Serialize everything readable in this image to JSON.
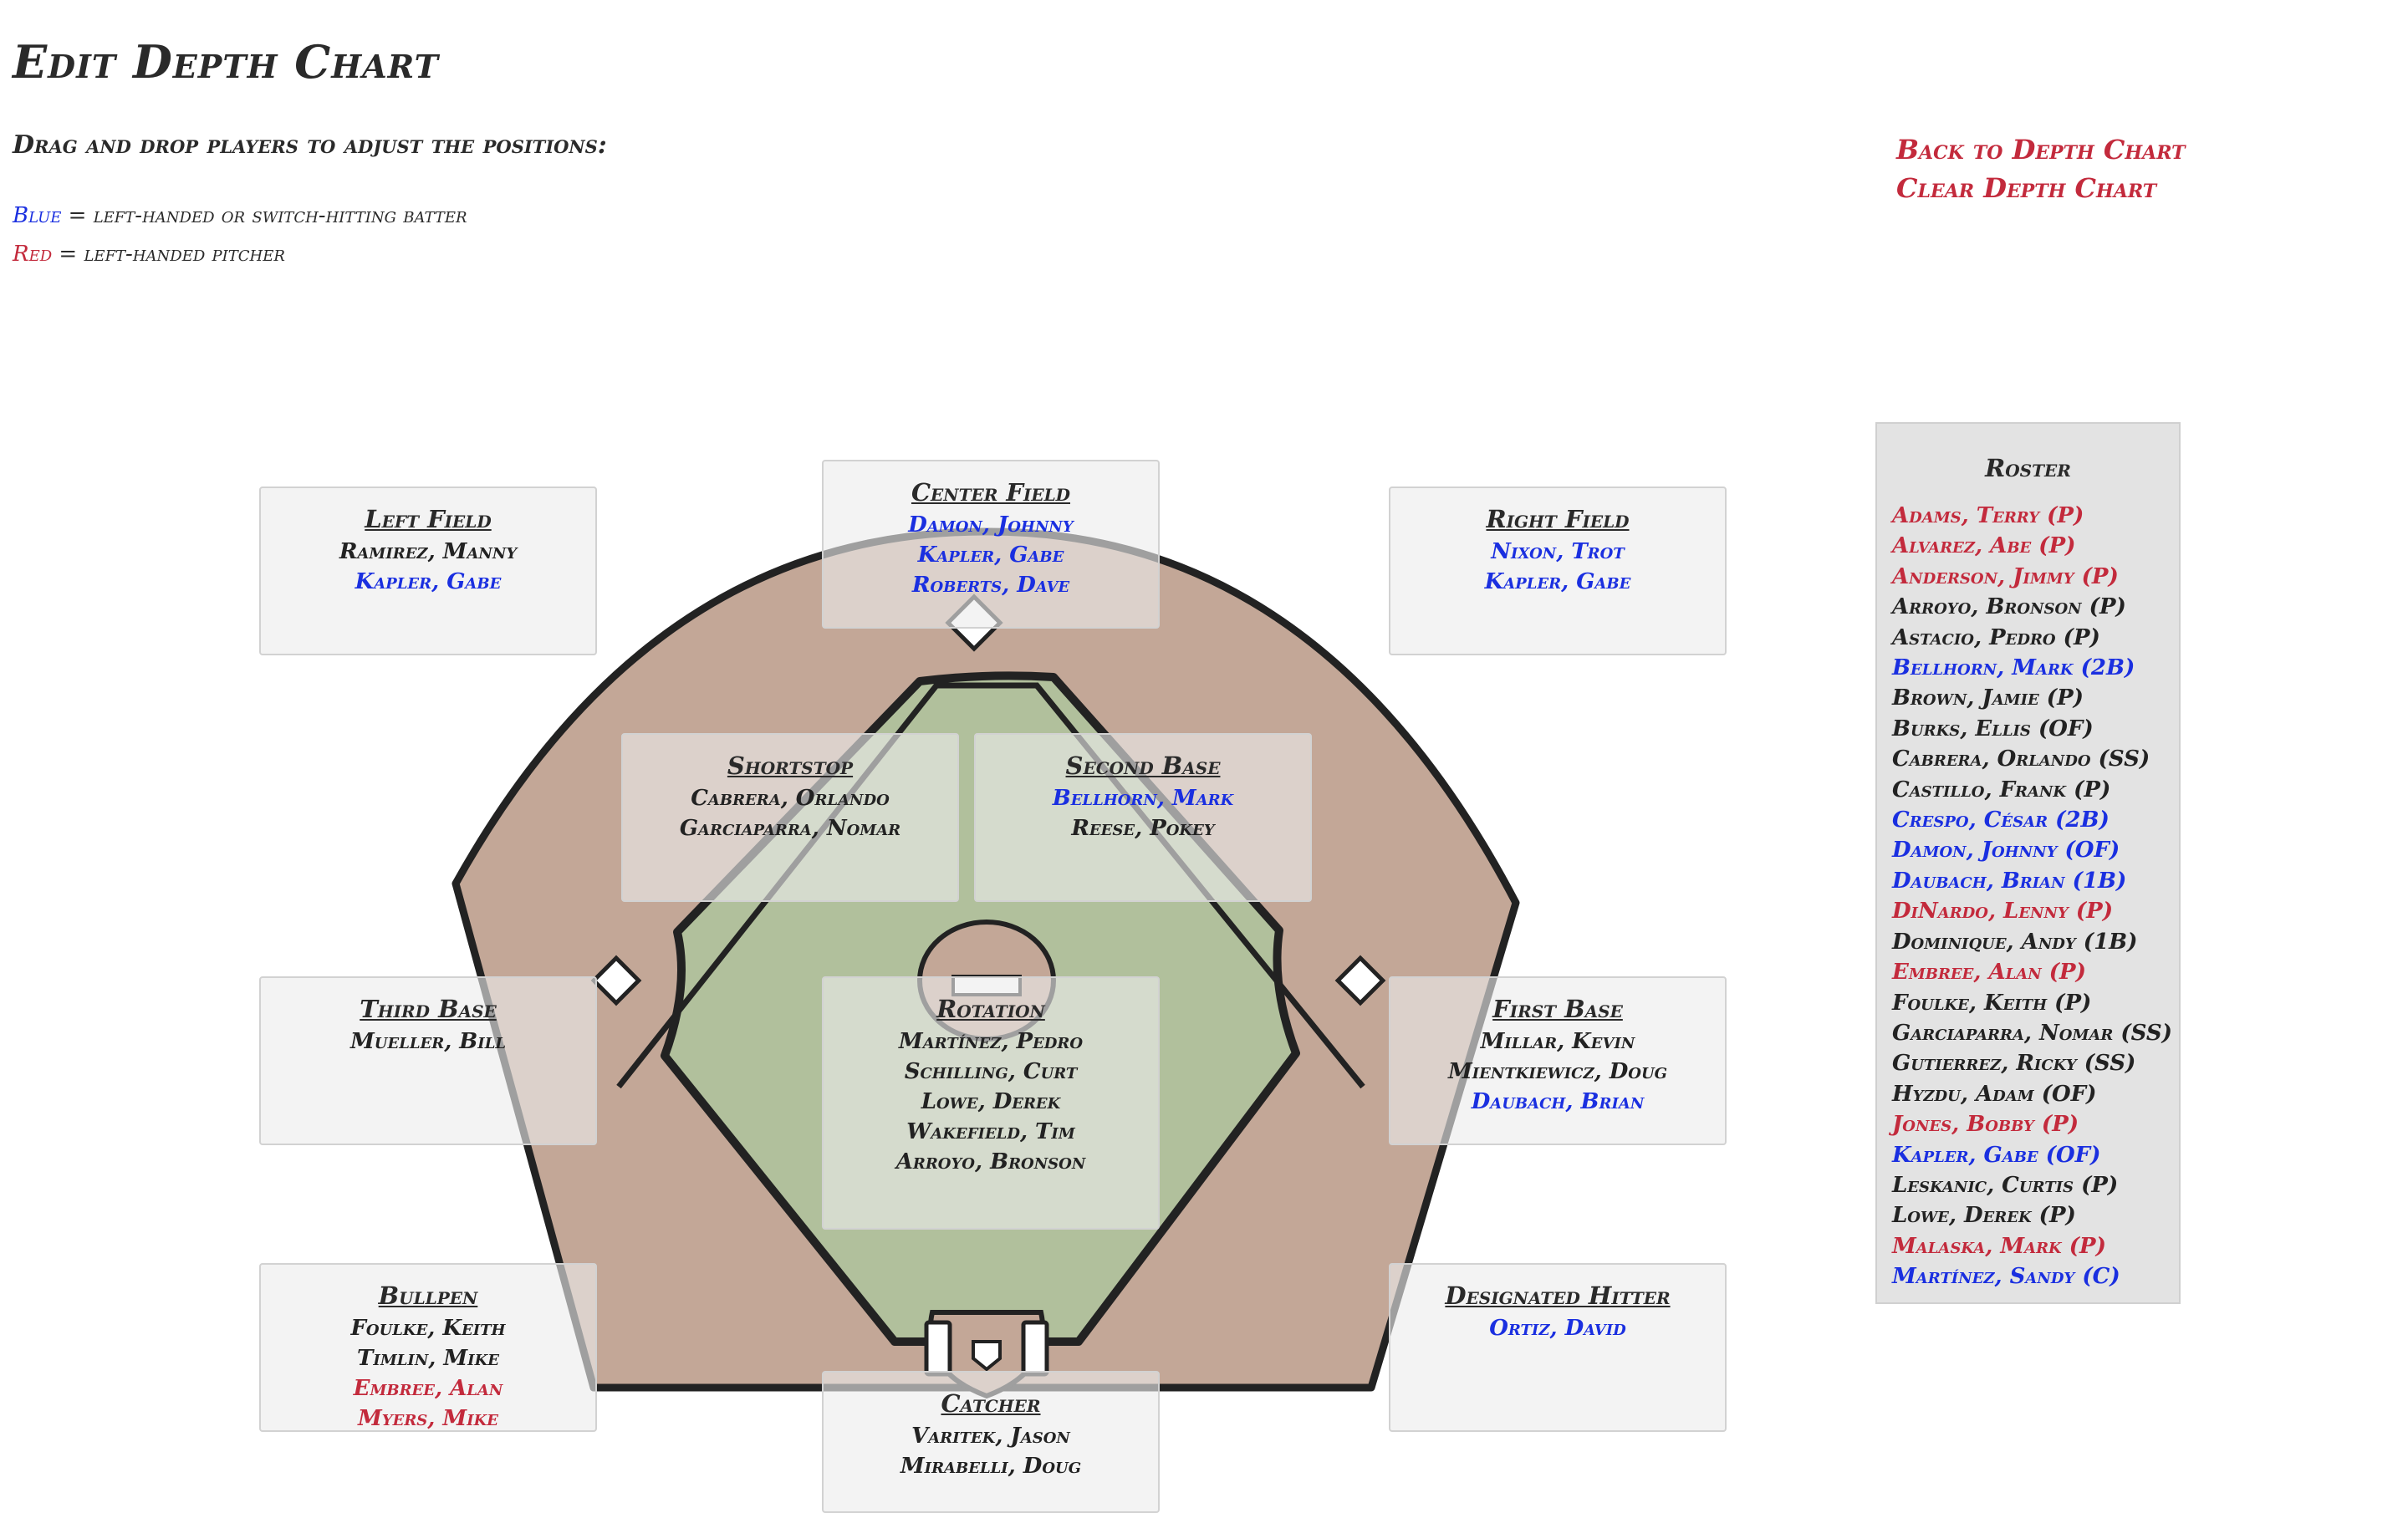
{
  "header": {
    "title": "Edit Depth Chart",
    "instructions": "Drag and drop players to adjust the positions:",
    "legend_blue_word": "Blue",
    "legend_blue_text": " = left-handed or switch-hitting batter",
    "legend_red_word": "Red",
    "legend_red_text": " = left-handed pitcher"
  },
  "links": {
    "back": "Back to Depth Chart",
    "clear": "Clear Depth Chart"
  },
  "colors": {
    "blue": "#1a2fe0",
    "red": "#c32a3c",
    "infield": "#b1c09c",
    "dirt": "#c3a797"
  },
  "positions": [
    {
      "id": "left-field",
      "title": "Left Field",
      "players": [
        {
          "name": "Ramirez, Manny",
          "color": "default"
        },
        {
          "name": "Kapler, Gabe",
          "color": "blue"
        }
      ]
    },
    {
      "id": "center-field",
      "title": "Center Field",
      "players": [
        {
          "name": "Damon, Johnny",
          "color": "blue"
        },
        {
          "name": "Kapler, Gabe",
          "color": "blue"
        },
        {
          "name": "Roberts, Dave",
          "color": "blue"
        }
      ]
    },
    {
      "id": "right-field",
      "title": "Right Field",
      "players": [
        {
          "name": "Nixon, Trot",
          "color": "blue"
        },
        {
          "name": "Kapler, Gabe",
          "color": "blue"
        }
      ]
    },
    {
      "id": "shortstop",
      "title": "Shortstop",
      "players": [
        {
          "name": "Cabrera, Orlando",
          "color": "default"
        },
        {
          "name": "Garciaparra, Nomar",
          "color": "default"
        }
      ]
    },
    {
      "id": "second-base",
      "title": "Second Base",
      "players": [
        {
          "name": "Bellhorn, Mark",
          "color": "blue"
        },
        {
          "name": "Reese, Pokey",
          "color": "default"
        }
      ]
    },
    {
      "id": "third-base",
      "title": "Third Base",
      "players": [
        {
          "name": "Mueller, Bill",
          "color": "default"
        }
      ]
    },
    {
      "id": "rotation",
      "title": "Rotation",
      "players": [
        {
          "name": "Martínez, Pedro",
          "color": "default"
        },
        {
          "name": "Schilling, Curt",
          "color": "default"
        },
        {
          "name": "Lowe, Derek",
          "color": "default"
        },
        {
          "name": "Wakefield, Tim",
          "color": "default"
        },
        {
          "name": "Arroyo, Bronson",
          "color": "default"
        }
      ]
    },
    {
      "id": "first-base",
      "title": "First Base",
      "players": [
        {
          "name": "Millar, Kevin",
          "color": "default"
        },
        {
          "name": "Mientkiewicz, Doug",
          "color": "default"
        },
        {
          "name": "Daubach, Brian",
          "color": "blue"
        }
      ]
    },
    {
      "id": "bullpen",
      "title": "Bullpen",
      "players": [
        {
          "name": "Foulke, Keith",
          "color": "default"
        },
        {
          "name": "Timlin, Mike",
          "color": "default"
        },
        {
          "name": "Embree, Alan",
          "color": "red"
        },
        {
          "name": "Myers, Mike",
          "color": "red"
        }
      ]
    },
    {
      "id": "designated-hitter",
      "title": "Designated Hitter",
      "players": [
        {
          "name": "Ortiz, David",
          "color": "blue"
        }
      ]
    },
    {
      "id": "catcher",
      "title": "Catcher",
      "players": [
        {
          "name": "Varitek, Jason",
          "color": "default"
        },
        {
          "name": "Mirabelli, Doug",
          "color": "default"
        }
      ]
    }
  ],
  "roster": {
    "title": "Roster",
    "players": [
      {
        "name": "Adams, Terry (P)",
        "color": "red"
      },
      {
        "name": "Alvarez, Abe (P)",
        "color": "red"
      },
      {
        "name": "Anderson, Jimmy (P)",
        "color": "red"
      },
      {
        "name": "Arroyo, Bronson (P)",
        "color": "default"
      },
      {
        "name": "Astacio, Pedro (P)",
        "color": "default"
      },
      {
        "name": "Bellhorn, Mark (2B)",
        "color": "blue"
      },
      {
        "name": "Brown, Jamie (P)",
        "color": "default"
      },
      {
        "name": "Burks, Ellis (OF)",
        "color": "default"
      },
      {
        "name": "Cabrera, Orlando (SS)",
        "color": "default"
      },
      {
        "name": "Castillo, Frank (P)",
        "color": "default"
      },
      {
        "name": "Crespo, César (2B)",
        "color": "blue"
      },
      {
        "name": "Damon, Johnny (OF)",
        "color": "blue"
      },
      {
        "name": "Daubach, Brian (1B)",
        "color": "blue"
      },
      {
        "name": "DiNardo, Lenny (P)",
        "color": "red"
      },
      {
        "name": "Dominique, Andy (1B)",
        "color": "default"
      },
      {
        "name": "Embree, Alan (P)",
        "color": "red"
      },
      {
        "name": "Foulke, Keith (P)",
        "color": "default"
      },
      {
        "name": "Garciaparra, Nomar (SS)",
        "color": "default"
      },
      {
        "name": "Gutierrez, Ricky (SS)",
        "color": "default"
      },
      {
        "name": "Hyzdu, Adam (OF)",
        "color": "default"
      },
      {
        "name": "Jones, Bobby (P)",
        "color": "red"
      },
      {
        "name": "Kapler, Gabe (OF)",
        "color": "blue"
      },
      {
        "name": "Leskanic, Curtis (P)",
        "color": "default"
      },
      {
        "name": "Lowe, Derek (P)",
        "color": "default"
      },
      {
        "name": "Malaska, Mark (P)",
        "color": "red"
      },
      {
        "name": "Martínez, Sandy (C)",
        "color": "blue"
      }
    ]
  }
}
